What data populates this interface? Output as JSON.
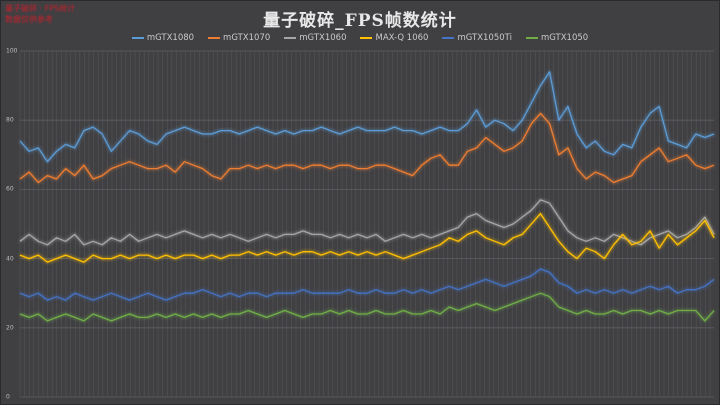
{
  "watermark": {
    "line1": "量子破碎 · FPS统计",
    "line2": "数据仅供参考"
  },
  "chart_data": {
    "type": "line",
    "title": "量子破碎_FPS帧数统计",
    "xlabel": "",
    "ylabel": "",
    "ylim": [
      0,
      100
    ],
    "yticks": [
      0,
      20,
      40,
      60,
      80,
      100
    ],
    "grid": {
      "vertical": true,
      "horizontal": true
    },
    "legend_position": "top",
    "series": [
      {
        "name": "mGTX1080",
        "color": "#5b9bd5",
        "values": [
          74,
          71,
          72,
          68,
          71,
          73,
          72,
          77,
          78,
          76,
          71,
          74,
          77,
          76,
          74,
          73,
          76,
          77,
          78,
          77,
          76,
          76,
          77,
          77,
          76,
          77,
          78,
          77,
          76,
          77,
          76,
          77,
          77,
          78,
          77,
          76,
          77,
          78,
          77,
          77,
          77,
          78,
          77,
          77,
          76,
          77,
          78,
          77,
          77,
          79,
          83,
          78,
          80,
          79,
          77,
          80,
          85,
          90,
          94,
          80,
          84,
          76,
          72,
          74,
          71,
          70,
          73,
          72,
          78,
          82,
          84,
          74,
          73,
          72,
          76,
          75,
          76
        ]
      },
      {
        "name": "mGTX1070",
        "color": "#ed7d31",
        "values": [
          63,
          65,
          62,
          64,
          63,
          66,
          64,
          67,
          63,
          64,
          66,
          67,
          68,
          67,
          66,
          66,
          67,
          65,
          68,
          67,
          66,
          64,
          63,
          66,
          66,
          67,
          66,
          67,
          66,
          67,
          67,
          66,
          67,
          67,
          66,
          67,
          67,
          66,
          66,
          67,
          67,
          66,
          65,
          64,
          67,
          69,
          70,
          67,
          67,
          71,
          72,
          75,
          73,
          71,
          72,
          74,
          79,
          82,
          79,
          70,
          72,
          66,
          63,
          65,
          64,
          62,
          63,
          64,
          68,
          70,
          72,
          68,
          69,
          70,
          67,
          66,
          67
        ]
      },
      {
        "name": "mGTX1060",
        "color": "#a5a5a5",
        "values": [
          45,
          47,
          45,
          44,
          46,
          45,
          47,
          44,
          45,
          44,
          46,
          45,
          47,
          45,
          46,
          47,
          46,
          47,
          48,
          47,
          46,
          47,
          46,
          47,
          46,
          45,
          46,
          47,
          46,
          47,
          47,
          48,
          47,
          47,
          46,
          47,
          46,
          47,
          46,
          47,
          45,
          46,
          47,
          46,
          47,
          46,
          47,
          48,
          49,
          52,
          53,
          51,
          50,
          49,
          50,
          52,
          54,
          57,
          56,
          52,
          48,
          46,
          45,
          46,
          45,
          47,
          46,
          45,
          44,
          46,
          47,
          48,
          46,
          47,
          49,
          52,
          47
        ]
      },
      {
        "name": "MAX-Q 1060",
        "color": "#ffc000",
        "values": [
          41,
          40,
          41,
          39,
          40,
          41,
          40,
          39,
          41,
          40,
          40,
          41,
          40,
          41,
          41,
          40,
          41,
          40,
          41,
          41,
          40,
          41,
          40,
          41,
          41,
          42,
          41,
          42,
          41,
          42,
          41,
          42,
          42,
          41,
          42,
          41,
          42,
          41,
          42,
          41,
          42,
          41,
          40,
          41,
          42,
          43,
          44,
          46,
          45,
          47,
          48,
          46,
          45,
          44,
          46,
          47,
          50,
          53,
          49,
          45,
          42,
          40,
          43,
          42,
          40,
          44,
          47,
          44,
          45,
          48,
          43,
          47,
          44,
          46,
          48,
          51,
          46
        ]
      },
      {
        "name": "mGTX1050Ti",
        "color": "#4472c4",
        "values": [
          30,
          29,
          30,
          28,
          29,
          28,
          30,
          29,
          28,
          29,
          30,
          29,
          28,
          29,
          30,
          29,
          28,
          29,
          30,
          30,
          31,
          30,
          29,
          30,
          29,
          30,
          30,
          29,
          30,
          30,
          30,
          31,
          30,
          30,
          30,
          30,
          31,
          30,
          30,
          31,
          30,
          30,
          31,
          30,
          31,
          30,
          31,
          32,
          31,
          32,
          33,
          34,
          33,
          32,
          33,
          34,
          35,
          37,
          36,
          33,
          32,
          30,
          31,
          30,
          31,
          30,
          31,
          30,
          31,
          32,
          31,
          32,
          30,
          31,
          31,
          32,
          34
        ]
      },
      {
        "name": "mGTX1050",
        "color": "#70ad47",
        "values": [
          24,
          23,
          24,
          22,
          23,
          24,
          23,
          22,
          24,
          23,
          22,
          23,
          24,
          23,
          23,
          24,
          23,
          24,
          23,
          24,
          23,
          24,
          23,
          24,
          24,
          25,
          24,
          23,
          24,
          25,
          24,
          23,
          24,
          24,
          25,
          24,
          25,
          24,
          24,
          25,
          24,
          24,
          25,
          24,
          24,
          25,
          24,
          26,
          25,
          26,
          27,
          26,
          25,
          26,
          27,
          28,
          29,
          30,
          29,
          26,
          25,
          24,
          25,
          24,
          24,
          25,
          24,
          25,
          25,
          24,
          25,
          24,
          25,
          25,
          25,
          22,
          25
        ]
      }
    ]
  }
}
